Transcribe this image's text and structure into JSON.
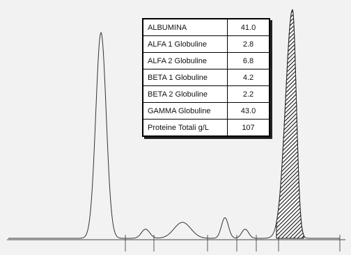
{
  "chart_data": {
    "type": "line",
    "peaks": [
      {
        "name": "ALBUMINA",
        "relative_height": 0.9
      },
      {
        "name": "ALFA 1 Globuline",
        "relative_height": 0.04
      },
      {
        "name": "ALFA 2 Globuline",
        "relative_height": 0.07
      },
      {
        "name": "BETA 1 Globuline",
        "relative_height": 0.09
      },
      {
        "name": "BETA 2 Globuline",
        "relative_height": 0.04
      },
      {
        "name": "GAMMA Globuline",
        "relative_height": 1.0,
        "hatched": true
      }
    ],
    "table": [
      {
        "label": "ALBUMINA",
        "value": "41.0"
      },
      {
        "label": "ALFA 1 Globuline",
        "value": "2.8"
      },
      {
        "label": "ALFA 2 Globuline",
        "value": "6.8"
      },
      {
        "label": "BETA 1 Globuline",
        "value": "4.2"
      },
      {
        "label": "BETA 2 Globuline",
        "value": "2.2"
      },
      {
        "label": "GAMMA Globuline",
        "value": "43.0"
      },
      {
        "label": "Proteine Totali g/L",
        "value": "107"
      }
    ]
  },
  "colors": {
    "curve": "#333333",
    "background": "#f2f2f2"
  }
}
